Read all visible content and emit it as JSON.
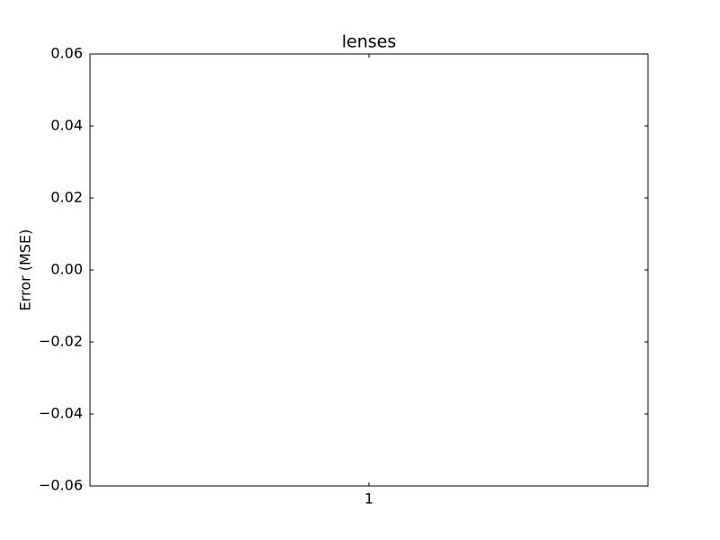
{
  "chart_data": {
    "type": "box",
    "title": "lenses",
    "ylabel": "Error (MSE)",
    "categories": [
      "1"
    ],
    "ylim": [
      -0.06,
      0.06
    ],
    "yticks": [
      {
        "value": -0.06,
        "label": "−0.06"
      },
      {
        "value": -0.04,
        "label": "−0.04"
      },
      {
        "value": -0.02,
        "label": "−0.02"
      },
      {
        "value": 0,
        "label": "0.00"
      },
      0.02,
      0.04,
      0.06
    ],
    "grid": false
  }
}
